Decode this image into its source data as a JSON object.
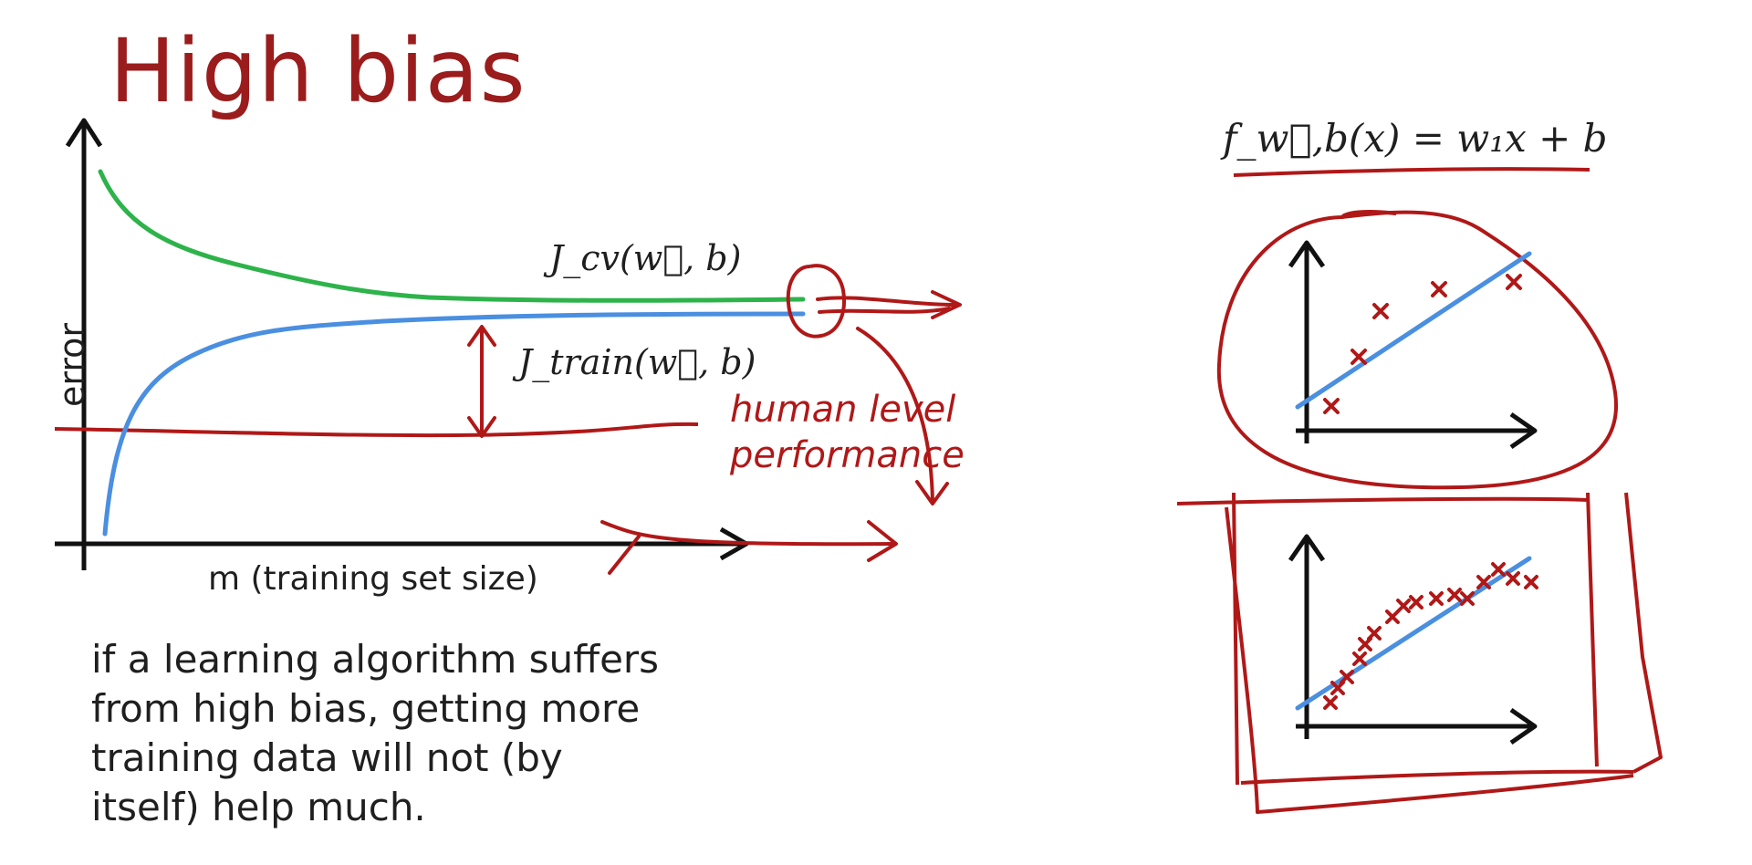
{
  "title": "High bias",
  "learning_curve": {
    "y_axis_label": "error",
    "x_axis_label": "m (training set size)",
    "cv_label": "J_cv(w⃗, b)",
    "train_label": "J_train(w⃗, b)",
    "baseline_label_line1": "human level",
    "baseline_label_line2": "performance"
  },
  "model": {
    "equation": "f_w⃗,b(x) = w₁x + b"
  },
  "caption_lines": [
    "if a learning algorithm suffers",
    "from high bias, getting more",
    "training data will not (by",
    "itself) help much."
  ],
  "colors": {
    "title": "#9b1c1c",
    "annotation_red": "#b01818",
    "cv_curve": "#2db34a",
    "train_curve": "#4a8fe0",
    "axis": "#111111",
    "text": "#1f1f1f"
  }
}
